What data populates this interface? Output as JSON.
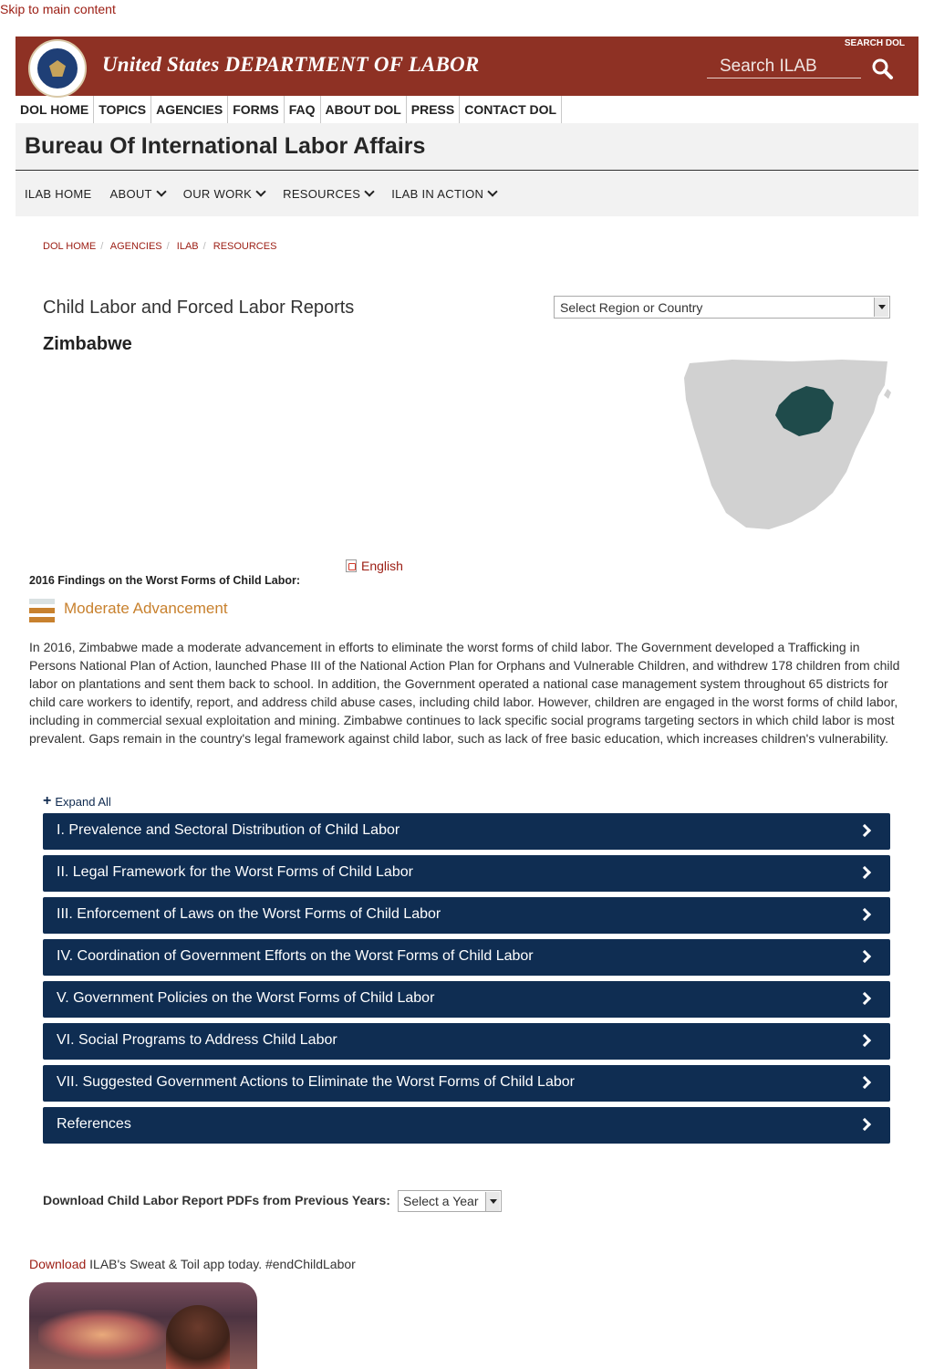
{
  "skip_link": "Skip to main content",
  "header": {
    "title": "United States DEPARTMENT OF LABOR",
    "search_label": "SEARCH DOL",
    "search_placeholder": "Search ILAB"
  },
  "topnav": [
    "DOL HOME",
    "TOPICS",
    "AGENCIES",
    "FORMS",
    "FAQ",
    "ABOUT DOL",
    "PRESS",
    "CONTACT DOL"
  ],
  "bureau": {
    "title": "Bureau Of International Labor Affairs",
    "subnav": [
      {
        "label": "ILAB HOME",
        "dropdown": false
      },
      {
        "label": "ABOUT",
        "dropdown": true
      },
      {
        "label": "OUR WORK",
        "dropdown": true
      },
      {
        "label": "RESOURCES",
        "dropdown": true
      },
      {
        "label": "ILAB IN ACTION",
        "dropdown": true
      }
    ]
  },
  "breadcrumb": [
    "DOL HOME",
    "AGENCIES",
    "ILAB",
    "RESOURCES"
  ],
  "page": {
    "subtitle": "Child Labor and Forced Labor Reports",
    "country": "Zimbabwe",
    "country_select": "Select Region or Country"
  },
  "findings": {
    "pdf_label": "English",
    "heading": "2016 Findings on the Worst Forms of Child Labor:",
    "assessment": "Moderate Advancement",
    "assessment_color": "#c8812e",
    "summary": "In 2016, Zimbabwe made a moderate advancement in efforts to eliminate the worst forms of child labor. The Government developed a Trafficking in Persons National Plan of Action, launched Phase III of the National Action Plan for Orphans and Vulnerable Children, and withdrew 178 children from child labor on plantations and sent them back to school. In addition, the Government operated a national case management system throughout 65 districts for child care workers to identify, report, and address child abuse cases, including child labor. However, children are engaged in the worst forms of child labor, including in commercial sexual exploitation and mining. Zimbabwe continues to lack specific social programs targeting sectors in which child labor is most prevalent. Gaps remain in the country's legal framework against child labor, such as lack of free basic education, which increases children's vulnerability."
  },
  "accordion": {
    "expand_all": "Expand All",
    "sections": [
      "I. Prevalence and Sectoral Distribution of Child Labor",
      "II. Legal Framework for the Worst Forms of Child Labor",
      "III. Enforcement of Laws on the Worst Forms of Child Labor",
      "IV. Coordination of Government Efforts on the Worst Forms of Child Labor",
      "V. Government Policies on the Worst Forms of Child Labor",
      "VI. Social Programs to Address Child Labor",
      "VII. Suggested Government Actions to Eliminate the Worst Forms of Child Labor",
      "References"
    ]
  },
  "downloads": {
    "label": "Download Child Labor Report PDFs from Previous Years:",
    "year_select": "Select a Year"
  },
  "app_promo": {
    "link": "Download",
    "text": " ILAB's Sweat & Toil app today. #endChildLabor"
  },
  "colors": {
    "banner": "#8e3124",
    "accordion": "#0f2d52",
    "link": "#9b1c12",
    "map_land": "#d1d1d1",
    "map_highlight": "#1f4b4b"
  }
}
